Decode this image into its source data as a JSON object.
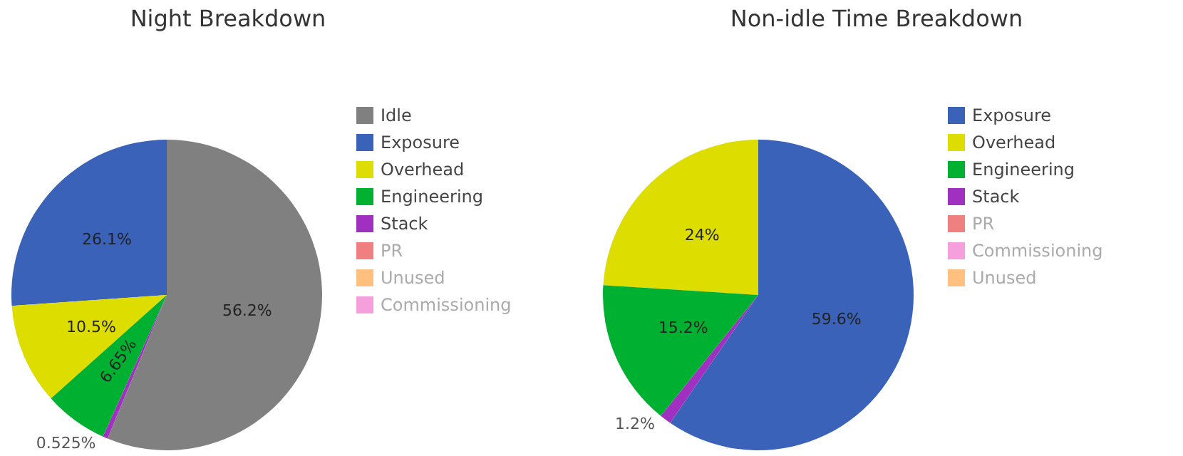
{
  "chart_data": [
    {
      "type": "pie",
      "title": "Night Breakdown",
      "categories": [
        "Idle",
        "Exposure",
        "Overhead",
        "Engineering",
        "Stack",
        "PR",
        "Unused",
        "Commissioning"
      ],
      "values": [
        56.2,
        26.1,
        10.5,
        6.65,
        0.525,
        0,
        0,
        0
      ],
      "value_labels": [
        "56.2%",
        "26.1%",
        "10.5%",
        "6.65%",
        "0.525%",
        null,
        null,
        null
      ],
      "colors": [
        "#808080",
        "#3a62b8",
        "#dddd00",
        "#00b030",
        "#a030c0",
        "#f08080",
        "#ffc080",
        "#f5a0dc"
      ],
      "legend": "right"
    },
    {
      "type": "pie",
      "title": "Non-idle Time Breakdown",
      "categories": [
        "Exposure",
        "Overhead",
        "Engineering",
        "Stack",
        "PR",
        "Commissioning",
        "Unused"
      ],
      "values": [
        59.6,
        24,
        15.2,
        1.2,
        0,
        0,
        0
      ],
      "value_labels": [
        "59.6%",
        "24%",
        "15.2%",
        "1.2%",
        null,
        null,
        null
      ],
      "colors": [
        "#3a62b8",
        "#dddd00",
        "#00b030",
        "#a030c0",
        "#f08080",
        "#f5a0dc",
        "#ffc080"
      ],
      "legend": "right"
    }
  ]
}
